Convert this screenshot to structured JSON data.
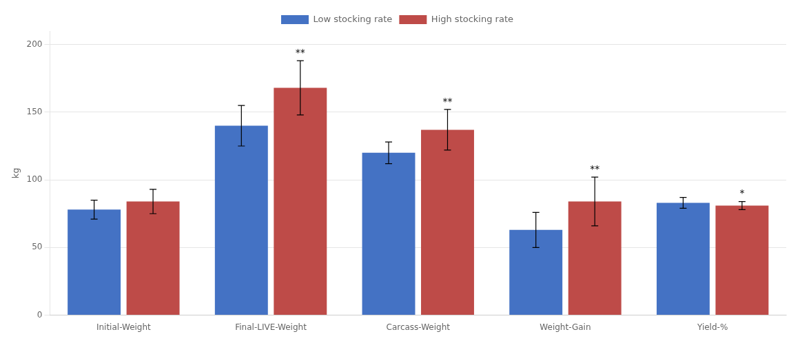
{
  "chart_data": {
    "type": "bar",
    "categories": [
      "Initial-Weight",
      "Final-LIVE-Weight",
      "Carcass-Weight",
      "Weight-Gain",
      "Yield-%"
    ],
    "series": [
      {
        "name": "Low stocking rate",
        "color": "#4472C4",
        "values": [
          78,
          140,
          120,
          63,
          83
        ],
        "errors": [
          7,
          15,
          8,
          13,
          4
        ]
      },
      {
        "name": "High stocking rate",
        "color": "#BE4B48",
        "values": [
          84,
          168,
          137,
          84,
          81
        ],
        "errors": [
          9,
          20,
          15,
          18,
          3
        ]
      }
    ],
    "annotations": [
      {
        "category": "Final-LIVE-Weight",
        "series": "High stocking rate",
        "text": "**"
      },
      {
        "category": "Carcass-Weight",
        "series": "High stocking rate",
        "text": "**"
      },
      {
        "category": "Weight-Gain",
        "series": "High stocking rate",
        "text": "**"
      },
      {
        "category": "Yield-%",
        "series": "High stocking rate",
        "text": "*"
      }
    ],
    "ylabel": "kg",
    "ylim": [
      0,
      210
    ],
    "yticks": [
      0,
      50,
      100,
      150,
      200
    ],
    "grid": true,
    "legend": "top"
  }
}
